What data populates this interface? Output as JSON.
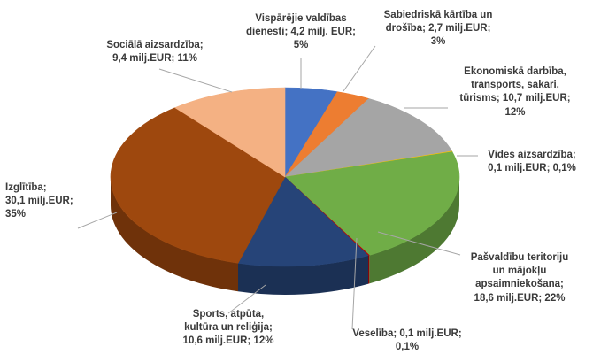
{
  "chart_data": {
    "type": "pie",
    "three_d": true,
    "title": "",
    "legend": "none",
    "unit": "milj. EUR",
    "slices": [
      {
        "name": "Vispārējie valdības dienesti",
        "value": 4.2,
        "percent": 5,
        "color": "#4472C4",
        "label_lines": [
          "Vispārējie valdības",
          "dienesti;  4,2 milj. EUR;",
          "5%"
        ]
      },
      {
        "name": "Sabiedriskā kārtība un drošība",
        "value": 2.7,
        "percent": 3,
        "color": "#ED7D31",
        "label_lines": [
          "Sabiedriskā kārtība un",
          "drošība;  2,7 milj.EUR;",
          "3%"
        ]
      },
      {
        "name": "Ekonomiskā darbība, transports, sakari, tūrisms",
        "value": 10.7,
        "percent": 12,
        "color": "#A5A5A5",
        "label_lines": [
          "Ekonomiskā darbība,",
          "transports, sakari,",
          "tūrisms;  10,7 milj.EUR;",
          "12%"
        ]
      },
      {
        "name": "Vides aizsardzība",
        "value": 0.1,
        "percent": 0.1,
        "color": "#FFC000",
        "label_lines": [
          "Vides aizsardzība;",
          "0,1 milj.EUR; 0,1%"
        ]
      },
      {
        "name": "Pašvaldību teritoriju un mājokļu apsaimniekošana",
        "value": 18.6,
        "percent": 22,
        "color": "#70AD47",
        "label_lines": [
          "Pašvaldību teritoriju",
          "un mājokļu",
          "apsaimniekošana;",
          "18,6 milj.EUR; 22%"
        ]
      },
      {
        "name": "Veselība",
        "value": 0.1,
        "percent": 0.1,
        "color": "#C00000",
        "label_lines": [
          "Veselība;  0,1 milj.EUR;",
          "0,1%"
        ]
      },
      {
        "name": "Sports, atpūta, kultūra un reliģija",
        "value": 10.6,
        "percent": 12,
        "color": "#264478",
        "label_lines": [
          "Sports, atpūta,",
          "kultūra un reliģija;",
          "10,6 milj.EUR; 12%"
        ]
      },
      {
        "name": "Izglītība",
        "value": 30.1,
        "percent": 35,
        "color": "#9E480E",
        "label_lines": [
          "Izglītība;",
          "30,1 milj.EUR;",
          "35%"
        ]
      },
      {
        "name": "Sociālā aizsardzība",
        "value": 9.4,
        "percent": 11,
        "color": "#F4B183",
        "label_lines": [
          "Sociālā aizsardzība;",
          "9,4 milj.EUR; 11%"
        ]
      }
    ]
  }
}
